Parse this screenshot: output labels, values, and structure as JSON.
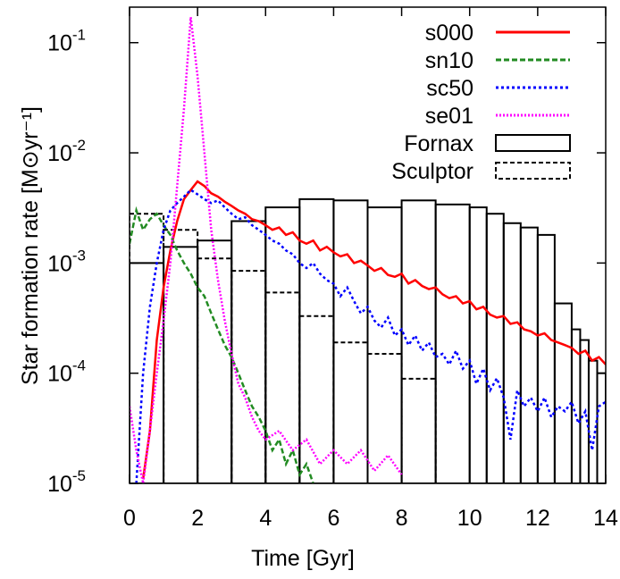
{
  "chart_data": {
    "type": "line",
    "xlabel": "Time [Gyr]",
    "ylabel": "Star formation rate [M⊙yr⁻¹]",
    "xlim": [
      0,
      14
    ],
    "xticks": [
      0,
      2,
      4,
      6,
      8,
      10,
      12,
      14
    ],
    "ylim": [
      1e-05,
      0.21
    ],
    "yscale": "log",
    "yticks": [
      {
        "value": 1e-05,
        "label": "10",
        "exponent": "-5"
      },
      {
        "value": 0.0001,
        "label": "10",
        "exponent": "-4"
      },
      {
        "value": 0.001,
        "label": "10",
        "exponent": "-3"
      },
      {
        "value": 0.01,
        "label": "10",
        "exponent": "-2"
      },
      {
        "value": 0.1,
        "label": "10",
        "exponent": "-1"
      }
    ],
    "legend": "upper right",
    "series": [
      {
        "name": "s000",
        "color": "#ff0000",
        "dash": "none",
        "x": [
          0.4,
          0.6,
          0.8,
          1.0,
          1.2,
          1.4,
          1.6,
          1.8,
          2.0,
          2.2,
          2.4,
          2.6,
          2.8,
          3.0,
          3.2,
          3.4,
          3.6,
          3.8,
          4.0,
          4.2,
          4.4,
          4.6,
          4.8,
          5.0,
          5.2,
          5.4,
          5.6,
          5.8,
          6.0,
          6.2,
          6.4,
          6.6,
          6.8,
          7.0,
          7.2,
          7.4,
          7.6,
          7.8,
          8.0,
          8.2,
          8.4,
          8.6,
          8.8,
          9.0,
          9.2,
          9.4,
          9.6,
          9.8,
          10.0,
          10.2,
          10.4,
          10.6,
          10.8,
          11.0,
          11.2,
          11.4,
          11.6,
          11.8,
          12.0,
          12.2,
          12.4,
          12.6,
          12.8,
          13.0,
          13.2,
          13.4,
          13.6,
          13.8,
          14.0
        ],
        "values": [
          1.1e-05,
          3e-05,
          0.0002,
          0.0006,
          0.0013,
          0.0024,
          0.0038,
          0.0046,
          0.0055,
          0.005,
          0.0043,
          0.004,
          0.0036,
          0.0033,
          0.003,
          0.0028,
          0.0025,
          0.0024,
          0.0022,
          0.002,
          0.0021,
          0.0018,
          0.0019,
          0.0016,
          0.0015,
          0.0016,
          0.0013,
          0.0014,
          0.00125,
          0.00115,
          0.0012,
          0.001,
          0.00105,
          0.00095,
          0.00085,
          0.0009,
          0.00078,
          0.00075,
          0.0008,
          0.00065,
          0.0007,
          0.00062,
          0.00058,
          0.0006,
          0.00052,
          0.00048,
          0.0005,
          0.00043,
          0.00045,
          0.00038,
          0.0004,
          0.00034,
          0.00032,
          0.00033,
          0.00028,
          0.00029,
          0.00025,
          0.00024,
          0.00022,
          0.00023,
          0.0002,
          0.00019,
          0.00018,
          0.00017,
          0.00015,
          0.00016,
          0.00013,
          0.00014,
          0.00012
        ]
      },
      {
        "name": "sn10",
        "color": "#228b22",
        "dash": "6,3",
        "x": [
          0,
          0.2,
          0.4,
          0.6,
          0.8,
          1.0,
          1.2,
          1.4,
          1.6,
          1.8,
          2.0,
          2.2,
          2.4,
          2.6,
          2.8,
          3.0,
          3.2,
          3.4,
          3.6,
          3.8,
          4.0,
          4.2,
          4.4,
          4.6,
          4.8,
          5.0,
          5.2,
          5.4
        ],
        "values": [
          0.0015,
          0.003,
          0.002,
          0.0025,
          0.0028,
          0.0022,
          0.0018,
          0.0013,
          0.001,
          0.0008,
          0.0006,
          0.0005,
          0.00035,
          0.00025,
          0.00018,
          0.00014,
          0.0001,
          7e-05,
          5e-05,
          4e-05,
          3e-05,
          2e-05,
          2.5e-05,
          1.5e-05,
          2e-05,
          1.2e-05,
          1.5e-05,
          1e-05
        ]
      },
      {
        "name": "sc50",
        "color": "#0000ff",
        "dash": "3,3",
        "x": [
          0.2,
          0.4,
          0.6,
          0.8,
          1.0,
          1.2,
          1.4,
          1.6,
          1.8,
          2.0,
          2.2,
          2.4,
          2.6,
          2.8,
          3.0,
          3.2,
          3.4,
          3.6,
          3.8,
          4.0,
          4.2,
          4.4,
          4.6,
          4.8,
          5.0,
          5.2,
          5.4,
          5.6,
          5.8,
          6.0,
          6.2,
          6.4,
          6.6,
          6.8,
          7.0,
          7.2,
          7.4,
          7.6,
          7.8,
          8.0,
          8.2,
          8.4,
          8.6,
          8.8,
          9.0,
          9.2,
          9.4,
          9.6,
          9.8,
          10.0,
          10.2,
          10.4,
          10.6,
          10.8,
          11.0,
          11.2,
          11.4,
          11.6,
          11.8,
          12.0,
          12.2,
          12.4,
          12.6,
          12.8,
          13.0,
          13.2,
          13.4,
          13.6,
          13.8,
          14.0
        ],
        "values": [
          1e-05,
          0.0001,
          0.0004,
          0.001,
          0.002,
          0.003,
          0.0035,
          0.004,
          0.0046,
          0.0042,
          0.0038,
          0.0035,
          0.0037,
          0.0032,
          0.0028,
          0.0025,
          0.0026,
          0.0022,
          0.002,
          0.0018,
          0.0016,
          0.0015,
          0.0013,
          0.0012,
          0.001,
          0.0009,
          0.001,
          0.0008,
          0.0007,
          0.00065,
          0.0005,
          0.0006,
          0.00045,
          0.00035,
          0.0004,
          0.0003,
          0.00026,
          0.00032,
          0.00022,
          0.00025,
          0.00018,
          0.00022,
          0.00016,
          0.00019,
          0.00014,
          0.00015,
          0.00012,
          0.00016,
          0.00011,
          0.00013,
          8e-05,
          0.00011,
          7e-05,
          9e-05,
          6e-05,
          2.5e-05,
          7e-05,
          5e-05,
          6e-05,
          4.5e-05,
          6e-05,
          4e-05,
          5e-05,
          4.5e-05,
          5.5e-05,
          3.5e-05,
          4.5e-05,
          2e-05,
          5e-05,
          5.5e-05
        ]
      },
      {
        "name": "se01",
        "color": "#ff00ff",
        "dash": "2,2",
        "x": [
          0,
          0.2,
          0.4,
          0.6,
          0.8,
          1.0,
          1.2,
          1.4,
          1.6,
          1.8,
          2.0,
          2.2,
          2.4,
          2.6,
          2.8,
          3.0,
          3.2,
          3.4,
          3.6,
          3.8,
          4.0,
          4.4,
          4.8,
          5.2,
          5.6,
          6.0,
          6.4,
          6.8,
          7.2,
          7.6,
          8.0
        ],
        "values": [
          5e-05,
          2e-05,
          1e-05,
          3e-05,
          0.0001,
          0.0003,
          0.001,
          0.005,
          0.025,
          0.17,
          0.05,
          0.01,
          0.002,
          0.0007,
          0.0003,
          0.00015,
          8e-05,
          6e-05,
          4e-05,
          3e-05,
          2.5e-05,
          3e-05,
          2e-05,
          2.5e-05,
          1.5e-05,
          2e-05,
          1.5e-05,
          2e-05,
          1.3e-05,
          1.8e-05,
          1.2e-05
        ]
      }
    ],
    "histograms": [
      {
        "name": "Fornax",
        "color": "#000000",
        "dash": "none",
        "bins": [
          0,
          1,
          2,
          3,
          4,
          5,
          6,
          7,
          8,
          9,
          10,
          10.5,
          11,
          11.5,
          12,
          12.5,
          13,
          13.25,
          13.5,
          13.75,
          14
        ],
        "values": [
          0.001,
          0.0014,
          0.0016,
          0.0024,
          0.0032,
          0.0038,
          0.0037,
          0.0032,
          0.0037,
          0.0034,
          0.0032,
          0.0028,
          0.0023,
          0.0021,
          0.0018,
          0.00043,
          0.00025,
          0.0002,
          0.00013,
          0.0001
        ]
      },
      {
        "name": "Sculptor",
        "color": "#000000",
        "dash": "5,3",
        "bins": [
          0,
          1,
          2,
          3,
          4,
          5,
          6,
          7,
          8,
          9
        ],
        "values": [
          0.0028,
          0.002,
          0.0011,
          0.00085,
          0.00054,
          0.00033,
          0.00019,
          0.00015,
          8.9e-05
        ]
      }
    ]
  }
}
